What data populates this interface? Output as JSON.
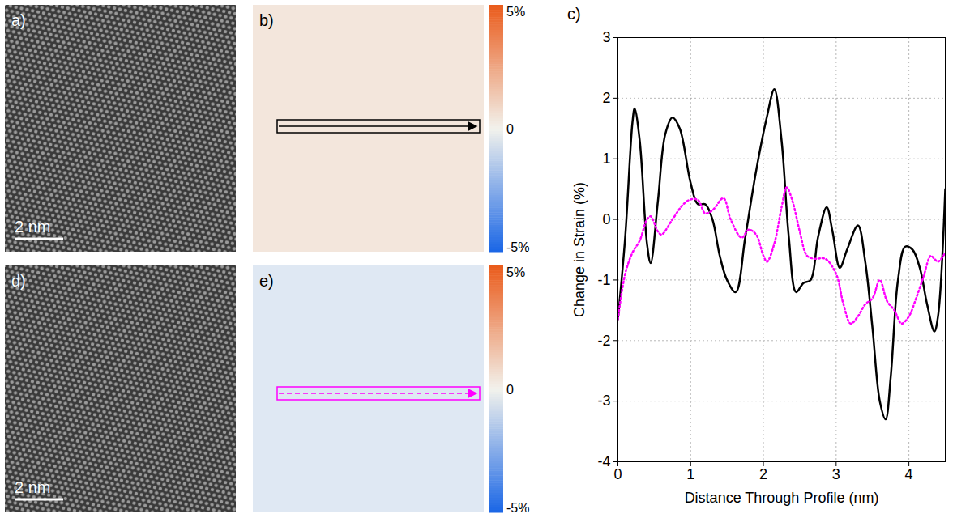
{
  "panels": [
    {
      "label": "a)",
      "type": "image",
      "scale_bar": "2 nm"
    },
    {
      "label": "b)",
      "type": "heatmap",
      "colorbar": {
        "range": [
          -5,
          5
        ],
        "ticks": [
          {
            "value": 5,
            "label": "5%"
          },
          0,
          {
            "value": -5,
            "label": "-5%"
          }
        ]
      }
    },
    {
      "label": "d)",
      "type": "image",
      "scale_bar": "2 nm"
    },
    {
      "label": "e)",
      "type": "heatmap",
      "colorbar": {
        "range": [
          -5,
          5
        ],
        "ticks": [
          {
            "value": 5,
            "label": "5%"
          },
          0,
          {
            "value": -5,
            "label": "-5%"
          }
        ]
      }
    }
  ],
  "chart_data": {
    "type": "line",
    "panel_label": "c)",
    "x_label": "Distance Through Profile (nm)",
    "y_label": "Change in Strain (%)",
    "xlim": [
      0,
      4.5
    ],
    "ylim": [
      -4,
      3
    ],
    "xticks": [
      0,
      1,
      2,
      3,
      4
    ],
    "yticks": [
      -4,
      -3,
      -2,
      -1,
      0,
      1,
      2,
      3
    ],
    "grid": true,
    "series": [
      {
        "color": "#000000",
        "line_style": "solid",
        "x": [
          0,
          0.1,
          0.2,
          0.23,
          0.3,
          0.4,
          0.45,
          0.55,
          0.65,
          0.75,
          0.85,
          1.0,
          1.1,
          1.2,
          1.3,
          1.4,
          1.5,
          1.62,
          1.75,
          1.9,
          2.05,
          2.15,
          2.25,
          2.35,
          2.45,
          2.55,
          2.65,
          2.75,
          2.87,
          2.95,
          3.05,
          3.15,
          3.3,
          3.4,
          3.5,
          3.6,
          3.68,
          3.75,
          3.85,
          3.95,
          4.05,
          4.15,
          4.25,
          4.35,
          4.4,
          4.5
        ],
        "values": [
          -1.65,
          -0.3,
          1.6,
          1.83,
          1.3,
          -0.4,
          -0.72,
          0.3,
          1.4,
          1.68,
          1.5,
          0.6,
          0.25,
          0.25,
          0.0,
          -0.6,
          -1.0,
          -1.2,
          -0.3,
          0.8,
          1.7,
          2.15,
          1.3,
          -0.3,
          -1.2,
          -1.05,
          -1.0,
          -0.3,
          0.2,
          -0.2,
          -0.8,
          -0.5,
          -0.1,
          -0.7,
          -1.8,
          -3.0,
          -3.3,
          -2.6,
          -1.0,
          -0.45,
          -0.5,
          -0.8,
          -1.4,
          -1.85,
          -1.6,
          0.5
        ]
      },
      {
        "color": "#ff00ff",
        "line_style": "dotted",
        "x": [
          0,
          0.1,
          0.2,
          0.3,
          0.4,
          0.45,
          0.55,
          0.6,
          0.75,
          0.9,
          1.0,
          1.1,
          1.2,
          1.3,
          1.45,
          1.55,
          1.7,
          1.8,
          1.9,
          2.0,
          2.05,
          2.15,
          2.25,
          2.32,
          2.4,
          2.5,
          2.6,
          2.7,
          2.85,
          3.0,
          3.1,
          3.2,
          3.3,
          3.4,
          3.5,
          3.6,
          3.7,
          3.8,
          3.9,
          4.0,
          4.1,
          4.2,
          4.3,
          4.35,
          4.4,
          4.5
        ],
        "values": [
          -1.65,
          -0.9,
          -0.55,
          -0.35,
          0.0,
          0.05,
          -0.2,
          -0.25,
          0.0,
          0.25,
          0.33,
          0.32,
          0.1,
          0.15,
          0.35,
          0.0,
          -0.3,
          -0.17,
          -0.25,
          -0.6,
          -0.7,
          -0.4,
          0.2,
          0.53,
          0.3,
          -0.2,
          -0.6,
          -0.65,
          -0.65,
          -0.9,
          -1.4,
          -1.72,
          -1.6,
          -1.4,
          -1.3,
          -1.0,
          -1.35,
          -1.5,
          -1.72,
          -1.6,
          -1.3,
          -0.95,
          -0.6,
          -0.65,
          -0.7,
          -0.55
        ]
      }
    ]
  }
}
